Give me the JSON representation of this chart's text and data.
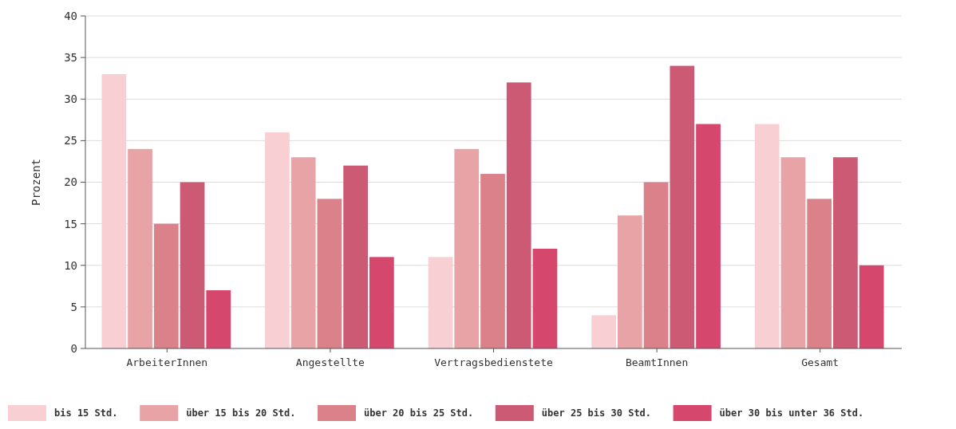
{
  "chart_data": {
    "type": "bar",
    "ylabel": "Prozent",
    "categories": [
      "ArbeiterInnen",
      "Angestellte",
      "Vertragsbedienstete",
      "BeamtInnen",
      "Gesamt"
    ],
    "series": [
      {
        "name": "bis 15 Std.",
        "color": "#f8d0d4",
        "values": [
          33,
          26,
          11,
          4,
          27
        ]
      },
      {
        "name": "über 15 bis 20 Std.",
        "color": "#e8a3a7",
        "values": [
          24,
          23,
          24,
          16,
          23
        ]
      },
      {
        "name": "über 20 bis 25 Std.",
        "color": "#da8189",
        "values": [
          15,
          18,
          21,
          20,
          18
        ]
      },
      {
        "name": "über 25 bis 30 Std.",
        "color": "#cc5a74",
        "values": [
          20,
          22,
          32,
          34,
          23
        ]
      },
      {
        "name": "über 30 bis unter 36 Std.",
        "color": "#d5476c",
        "values": [
          7,
          11,
          12,
          27,
          10
        ]
      }
    ],
    "ylim": [
      0,
      40
    ],
    "yticks": [
      0,
      5,
      10,
      15,
      20,
      25,
      30,
      35,
      40
    ],
    "grid": "y",
    "legend": "bottom"
  }
}
